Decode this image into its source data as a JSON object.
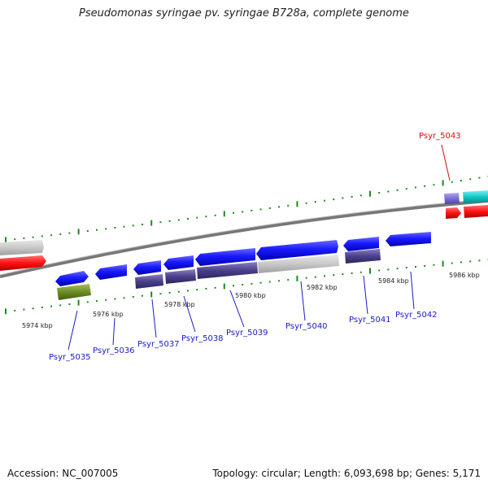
{
  "title": "Pseudomonas syringae pv. syringae B728a, complete genome",
  "footer": {
    "accession": "Accession: NC_007005",
    "topology": "Topology: circular; Length: 6,093,698 bp; Genes: 5,171"
  },
  "colors": {
    "forward_gene": "#1a1aff",
    "cds_purple": "#4a3f8a",
    "pseudo_gray": "#c8c8c8",
    "rna_red": "#ff1111",
    "olive": "#6b8e23",
    "cyan": "#11c8c8",
    "light_purple": "#7b6fd6",
    "tick_green": "#1f8a1f",
    "label_blue": "#1a1acc",
    "label_red": "#cc1111"
  },
  "ticks": [
    {
      "label": "5974 kbp"
    },
    {
      "label": "5976 kbp"
    },
    {
      "label": "5978 kbp"
    },
    {
      "label": "5980 kbp"
    },
    {
      "label": "5982 kbp"
    },
    {
      "label": "5984 kbp"
    },
    {
      "label": "5986 kbp"
    }
  ],
  "genes": [
    {
      "label": "Psyr_5035",
      "color": "label_blue"
    },
    {
      "label": "Psyr_5036",
      "color": "label_blue"
    },
    {
      "label": "Psyr_5037",
      "color": "label_blue"
    },
    {
      "label": "Psyr_5038",
      "color": "label_blue"
    },
    {
      "label": "Psyr_5039",
      "color": "label_blue"
    },
    {
      "label": "Psyr_5040",
      "color": "label_blue"
    },
    {
      "label": "Psyr_5041",
      "color": "label_blue"
    },
    {
      "label": "Psyr_5042",
      "color": "label_blue"
    },
    {
      "label": "Psyr_5043",
      "color": "label_red"
    }
  ]
}
